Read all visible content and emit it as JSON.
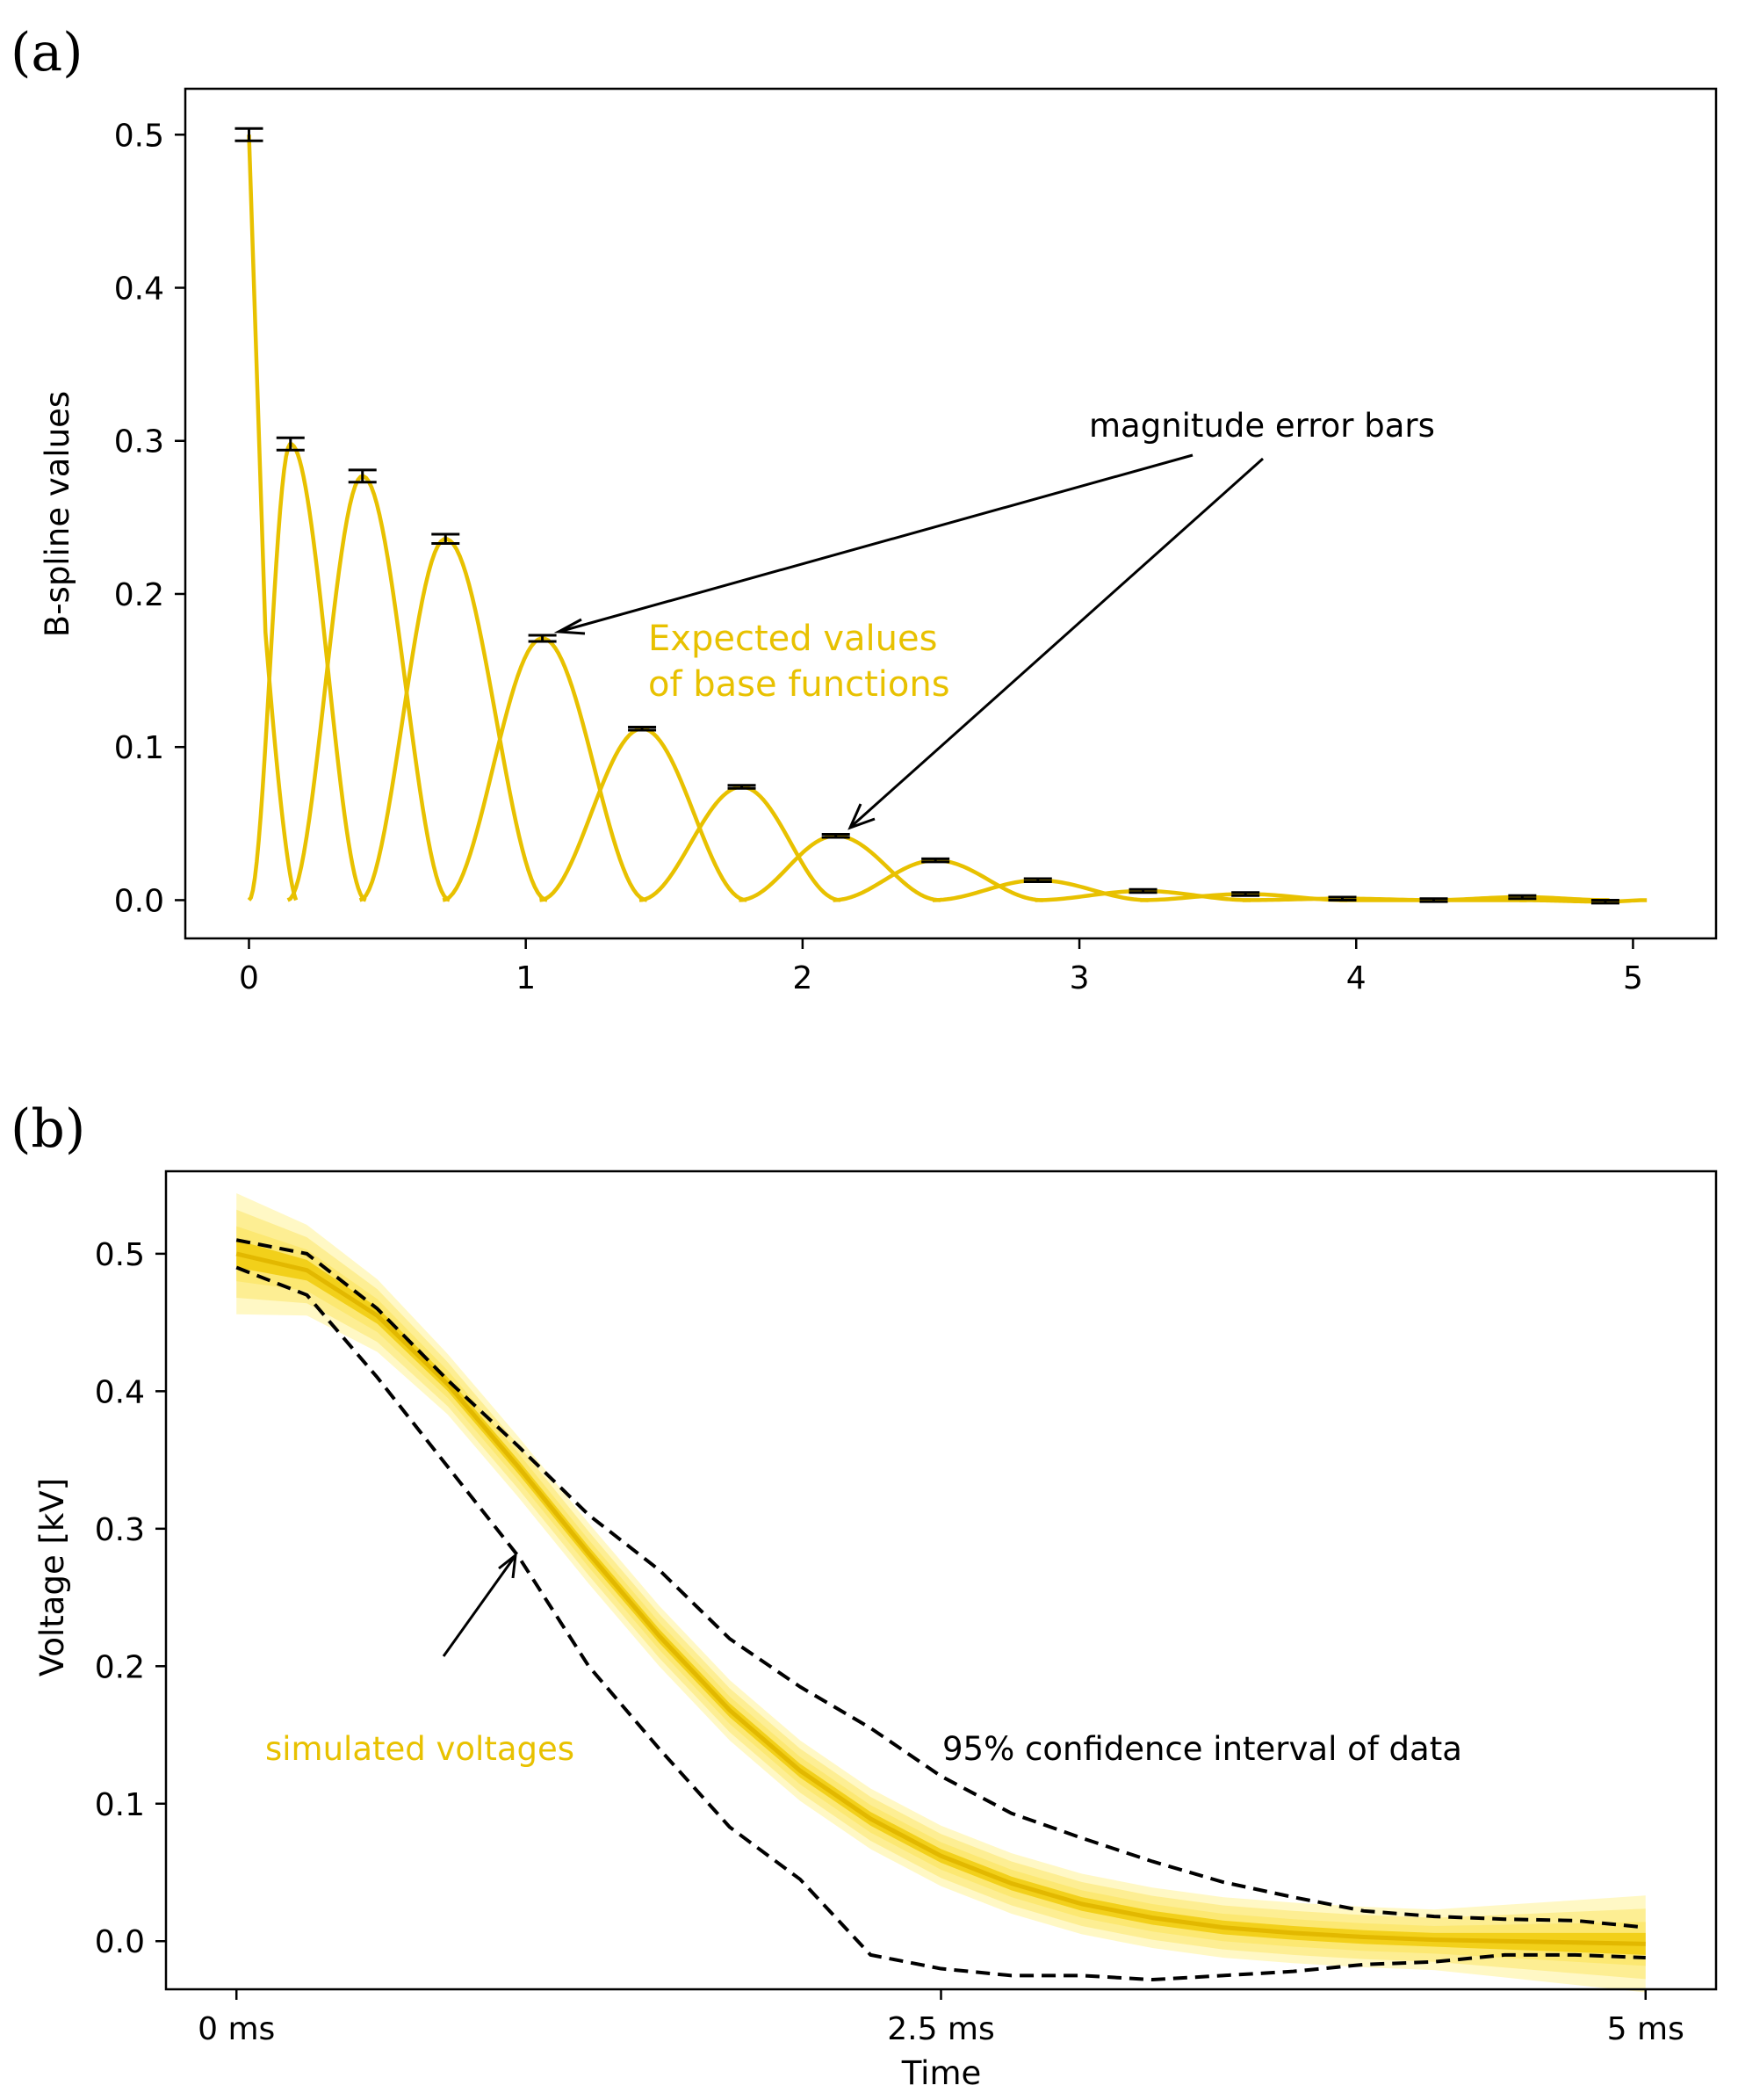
{
  "panels": {
    "a": {
      "label": "(a)"
    },
    "b": {
      "label": "(b)"
    }
  },
  "colors": {
    "curve": "#E8C100",
    "band_outer": "#FFF7BF",
    "band_mid": "#FBE66A",
    "band_inner": "#F0CB0A",
    "errorbar": "#000000",
    "ci_line": "#000000"
  },
  "annotations": {
    "a_error_bars": "magnitude error bars",
    "a_expected_line1": "Expected values",
    "a_expected_line2": "of base functions",
    "b_simulated": "simulated voltages",
    "b_confidence": "95% confidence interval of data"
  },
  "chart_data": [
    {
      "type": "line",
      "panel": "a",
      "title": "",
      "xlabel": "",
      "ylabel": "B-spline values",
      "xlim": [
        -0.23,
        5.3
      ],
      "ylim": [
        -0.025,
        0.53
      ],
      "xticks": [
        0,
        1,
        2,
        3,
        4,
        5
      ],
      "xtick_labels": [
        "0",
        "1",
        "2",
        "3",
        "4",
        "5"
      ],
      "yticks": [
        0.0,
        0.1,
        0.2,
        0.3,
        0.4,
        0.5
      ],
      "ytick_labels": [
        "0.0",
        "0.1",
        "0.2",
        "0.3",
        "0.4",
        "0.5"
      ],
      "grid": false,
      "series_description": "B-spline base functions scaled by expected coefficient values",
      "peaks": [
        {
          "x": 0.0,
          "y": 0.5,
          "err": 0.004
        },
        {
          "x": 0.15,
          "y": 0.298,
          "err": 0.004
        },
        {
          "x": 0.41,
          "y": 0.277,
          "err": 0.004
        },
        {
          "x": 0.71,
          "y": 0.236,
          "err": 0.003
        },
        {
          "x": 1.06,
          "y": 0.171,
          "err": 0.002
        },
        {
          "x": 1.42,
          "y": 0.112,
          "err": 0.001
        },
        {
          "x": 1.78,
          "y": 0.074,
          "err": 0.001
        },
        {
          "x": 2.12,
          "y": 0.042,
          "err": 0.001
        },
        {
          "x": 2.48,
          "y": 0.026,
          "err": 0.001
        },
        {
          "x": 2.85,
          "y": 0.013,
          "err": 0.001
        },
        {
          "x": 3.23,
          "y": 0.006,
          "err": 0.001
        },
        {
          "x": 3.6,
          "y": 0.004,
          "err": 0.001
        },
        {
          "x": 3.95,
          "y": 0.001,
          "err": 0.001
        },
        {
          "x": 4.28,
          "y": 0.0,
          "err": 0.001
        },
        {
          "x": 4.6,
          "y": 0.002,
          "err": 0.001
        },
        {
          "x": 4.9,
          "y": -0.001,
          "err": 0.001
        }
      ],
      "x_end": 5.05
    },
    {
      "type": "line",
      "panel": "b",
      "title": "",
      "xlabel": "Time",
      "ylabel": "Voltage [kV]",
      "xlim": [
        -0.25,
        5.25
      ],
      "ylim": [
        -0.035,
        0.56
      ],
      "xticks": [
        0,
        2.5,
        5
      ],
      "xtick_labels": [
        "0 ms",
        "2.5 ms",
        "5 ms"
      ],
      "yticks": [
        0.0,
        0.1,
        0.2,
        0.3,
        0.4,
        0.5
      ],
      "ytick_labels": [
        "0.0",
        "0.1",
        "0.2",
        "0.3",
        "0.4",
        "0.5"
      ],
      "grid": false,
      "series": [
        {
          "name": "simulated voltages (mean)",
          "x": [
            0,
            0.25,
            0.5,
            0.75,
            1.0,
            1.25,
            1.5,
            1.75,
            2.0,
            2.25,
            2.5,
            2.75,
            3.0,
            3.25,
            3.5,
            3.75,
            4.0,
            4.25,
            4.5,
            4.75,
            5.0
          ],
          "y": [
            0.5,
            0.488,
            0.455,
            0.405,
            0.345,
            0.282,
            0.222,
            0.168,
            0.124,
            0.089,
            0.062,
            0.042,
            0.027,
            0.017,
            0.01,
            0.006,
            0.003,
            0.001,
            0.0,
            -0.001,
            -0.002
          ],
          "band_halfwidth": [
            0.02,
            0.015,
            0.012,
            0.01,
            0.01,
            0.01,
            0.01,
            0.01,
            0.01,
            0.01,
            0.01,
            0.01,
            0.01,
            0.01,
            0.01,
            0.01,
            0.01,
            0.01,
            0.012,
            0.014,
            0.016
          ]
        },
        {
          "name": "95% confidence interval upper",
          "x": [
            0,
            0.25,
            0.5,
            0.75,
            1.0,
            1.25,
            1.5,
            1.75,
            2.0,
            2.25,
            2.5,
            2.75,
            3.0,
            3.25,
            3.5,
            3.75,
            4.0,
            4.25,
            4.5,
            4.75,
            5.0
          ],
          "y": [
            0.51,
            0.5,
            0.46,
            0.408,
            0.36,
            0.31,
            0.27,
            0.22,
            0.185,
            0.155,
            0.12,
            0.093,
            0.075,
            0.058,
            0.043,
            0.032,
            0.022,
            0.018,
            0.016,
            0.015,
            0.01
          ]
        },
        {
          "name": "95% confidence interval lower",
          "x": [
            0,
            0.25,
            0.5,
            0.75,
            1.0,
            1.25,
            1.5,
            1.75,
            2.0,
            2.25,
            2.5,
            2.75,
            3.0,
            3.25,
            3.5,
            3.75,
            4.0,
            4.25,
            4.5,
            4.75,
            5.0
          ],
          "y": [
            0.49,
            0.47,
            0.41,
            0.345,
            0.28,
            0.2,
            0.14,
            0.083,
            0.045,
            -0.01,
            -0.02,
            -0.025,
            -0.025,
            -0.028,
            -0.025,
            -0.022,
            -0.017,
            -0.015,
            -0.01,
            -0.01,
            -0.012
          ]
        }
      ]
    }
  ]
}
